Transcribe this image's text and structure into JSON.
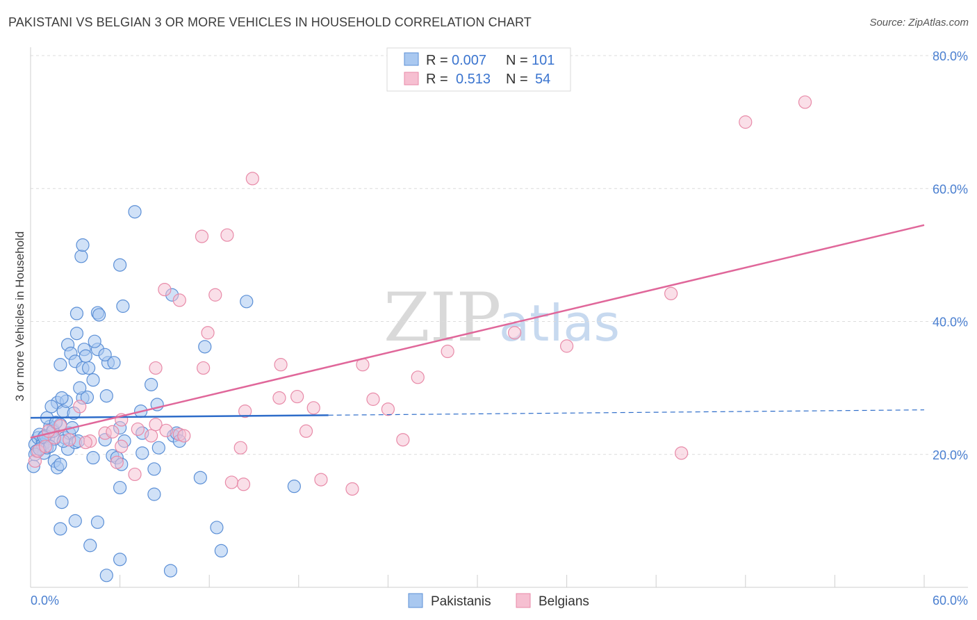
{
  "title": "PAKISTANI VS BELGIAN 3 OR MORE VEHICLES IN HOUSEHOLD CORRELATION CHART",
  "source": "Source: ZipAtlas.com",
  "watermark": {
    "zip": "ZIP",
    "atlas": "atlas"
  },
  "colors": {
    "pakistanis_fill": "#a9c8f0",
    "pakistanis_stroke": "#5b8fd6",
    "pakistanis_line": "#2d6cc9",
    "belgians_fill": "#f6bfd1",
    "belgians_stroke": "#e88aa8",
    "belgians_line": "#e0679a",
    "accent_text": "#3a74cf"
  },
  "legend": {
    "rows": [
      {
        "r_label": "R =",
        "r_value": "0.007",
        "n_label": "N =",
        "n_value": "101"
      },
      {
        "r_label": "R =",
        "r_value": "0.513",
        "n_label": "N =",
        "n_value": "54"
      }
    ]
  },
  "chart_data": {
    "type": "scatter",
    "title": "PAKISTANI VS BELGIAN 3 OR MORE VEHICLES IN HOUSEHOLD CORRELATION CHART",
    "xlabel": "",
    "ylabel": "3 or more Vehicles in Household",
    "xlim": [
      0,
      60
    ],
    "ylim": [
      0,
      80
    ],
    "x_tick_labels": [
      "0.0%",
      "60.0%"
    ],
    "y_ticks": [
      20,
      40,
      60,
      80
    ],
    "y_tick_labels": [
      "20.0%",
      "40.0%",
      "60.0%",
      "80.0%"
    ],
    "grid": true,
    "legend_position": "top-center",
    "series": [
      {
        "name": "Pakistanis",
        "r": 0.007,
        "n": 101,
        "trend": {
          "x0": 0,
          "y0": 25.5,
          "x1": 20,
          "y1": 25.9,
          "dashed_to_x": 60,
          "dashed_to_y": 26.7
        },
        "points": [
          [
            0.3,
            21.5
          ],
          [
            0.5,
            22.5
          ],
          [
            0.7,
            21.0
          ],
          [
            0.4,
            20.5
          ],
          [
            0.8,
            22.0
          ],
          [
            1.0,
            21.8
          ],
          [
            0.6,
            23.0
          ],
          [
            1.2,
            22.4
          ],
          [
            0.9,
            20.2
          ],
          [
            1.5,
            23.8
          ],
          [
            1.3,
            24.2
          ],
          [
            1.1,
            25.5
          ],
          [
            1.6,
            22.3
          ],
          [
            1.8,
            27.8
          ],
          [
            2.0,
            24.5
          ],
          [
            1.4,
            27.2
          ],
          [
            2.2,
            26.5
          ],
          [
            2.4,
            28.0
          ],
          [
            2.1,
            28.5
          ],
          [
            2.3,
            22.5
          ],
          [
            2.6,
            23.2
          ],
          [
            2.8,
            24.0
          ],
          [
            2.5,
            20.8
          ],
          [
            3.0,
            21.8
          ],
          [
            3.2,
            22.0
          ],
          [
            2.9,
            26.2
          ],
          [
            3.5,
            28.5
          ],
          [
            3.8,
            28.6
          ],
          [
            3.3,
            30.0
          ],
          [
            2.0,
            33.5
          ],
          [
            2.5,
            36.5
          ],
          [
            2.7,
            35.2
          ],
          [
            3.0,
            34.0
          ],
          [
            3.5,
            33.0
          ],
          [
            3.6,
            35.8
          ],
          [
            3.7,
            34.8
          ],
          [
            3.9,
            33.0
          ],
          [
            4.2,
            31.2
          ],
          [
            4.5,
            35.8
          ],
          [
            4.3,
            37.0
          ],
          [
            3.1,
            38.2
          ],
          [
            3.1,
            41.2
          ],
          [
            4.5,
            41.3
          ],
          [
            4.6,
            41.0
          ],
          [
            5.2,
            33.8
          ],
          [
            5.0,
            35.0
          ],
          [
            5.6,
            33.8
          ],
          [
            6.2,
            42.3
          ],
          [
            6.0,
            48.5
          ],
          [
            3.4,
            49.8
          ],
          [
            3.5,
            51.5
          ],
          [
            7.0,
            56.5
          ],
          [
            5.1,
            28.8
          ],
          [
            5.0,
            22.2
          ],
          [
            6.3,
            22.0
          ],
          [
            7.5,
            23.2
          ],
          [
            7.4,
            26.5
          ],
          [
            8.5,
            27.5
          ],
          [
            8.1,
            30.5
          ],
          [
            9.6,
            22.8
          ],
          [
            9.8,
            23.2
          ],
          [
            10.0,
            22.0
          ],
          [
            8.6,
            21.0
          ],
          [
            7.5,
            20.2
          ],
          [
            5.5,
            19.8
          ],
          [
            5.8,
            19.5
          ],
          [
            6.1,
            18.5
          ],
          [
            4.2,
            19.5
          ],
          [
            1.6,
            19.0
          ],
          [
            1.8,
            18.0
          ],
          [
            2.0,
            18.5
          ],
          [
            0.2,
            18.2
          ],
          [
            0.3,
            20.0
          ],
          [
            0.8,
            21.5
          ],
          [
            1.0,
            22.8
          ],
          [
            1.5,
            23.5
          ],
          [
            6.0,
            24.0
          ],
          [
            9.5,
            44.0
          ],
          [
            11.7,
            36.2
          ],
          [
            14.5,
            43.0
          ],
          [
            11.4,
            16.5
          ],
          [
            17.7,
            15.2
          ],
          [
            12.5,
            9.0
          ],
          [
            12.8,
            5.5
          ],
          [
            9.4,
            2.5
          ],
          [
            6.0,
            15.0
          ],
          [
            8.3,
            14.0
          ],
          [
            2.1,
            12.8
          ],
          [
            3.0,
            10.0
          ],
          [
            4.5,
            9.8
          ],
          [
            2.0,
            8.8
          ],
          [
            4.0,
            6.3
          ],
          [
            6.0,
            4.2
          ],
          [
            5.1,
            1.8
          ],
          [
            1.1,
            21.0
          ],
          [
            0.6,
            20.8
          ],
          [
            0.9,
            22.6
          ],
          [
            1.3,
            21.2
          ],
          [
            1.7,
            24.8
          ],
          [
            2.2,
            22.0
          ],
          [
            8.3,
            17.8
          ]
        ]
      },
      {
        "name": "Belgians",
        "r": 0.513,
        "n": 54,
        "trend": {
          "x0": 0,
          "y0": 22.5,
          "x1": 60,
          "y1": 54.5
        },
        "points": [
          [
            0.3,
            19.0
          ],
          [
            0.5,
            20.5
          ],
          [
            1.0,
            21.2
          ],
          [
            1.6,
            22.5
          ],
          [
            2.0,
            24.3
          ],
          [
            2.6,
            22.2
          ],
          [
            3.3,
            27.2
          ],
          [
            4.0,
            22.0
          ],
          [
            5.0,
            23.2
          ],
          [
            6.1,
            25.2
          ],
          [
            6.1,
            21.2
          ],
          [
            5.8,
            18.8
          ],
          [
            7.0,
            17.0
          ],
          [
            7.2,
            23.8
          ],
          [
            8.1,
            22.8
          ],
          [
            8.4,
            24.5
          ],
          [
            8.4,
            33.0
          ],
          [
            9.0,
            44.8
          ],
          [
            10.0,
            23.0
          ],
          [
            10.3,
            22.8
          ],
          [
            10.0,
            43.2
          ],
          [
            11.5,
            52.8
          ],
          [
            11.6,
            33.0
          ],
          [
            11.9,
            38.3
          ],
          [
            12.4,
            44.0
          ],
          [
            13.2,
            53.0
          ],
          [
            13.5,
            15.8
          ],
          [
            14.1,
            21.0
          ],
          [
            14.3,
            15.5
          ],
          [
            14.4,
            26.5
          ],
          [
            14.9,
            61.5
          ],
          [
            16.7,
            28.5
          ],
          [
            16.8,
            33.5
          ],
          [
            17.9,
            28.7
          ],
          [
            18.5,
            23.5
          ],
          [
            19.0,
            27.0
          ],
          [
            19.5,
            16.2
          ],
          [
            21.6,
            14.8
          ],
          [
            22.3,
            33.5
          ],
          [
            23.0,
            28.3
          ],
          [
            24.0,
            26.8
          ],
          [
            25.0,
            22.2
          ],
          [
            26.0,
            31.6
          ],
          [
            28.0,
            35.5
          ],
          [
            32.5,
            38.3
          ],
          [
            36.0,
            36.3
          ],
          [
            43.0,
            44.2
          ],
          [
            43.7,
            20.2
          ],
          [
            48.0,
            70.0
          ],
          [
            52.0,
            73.0
          ],
          [
            1.2,
            23.5
          ],
          [
            3.7,
            21.8
          ],
          [
            5.5,
            23.4
          ],
          [
            9.1,
            23.6
          ]
        ]
      }
    ]
  },
  "bottom_legend": {
    "pakistanis": "Pakistanis",
    "belgians": "Belgians"
  }
}
